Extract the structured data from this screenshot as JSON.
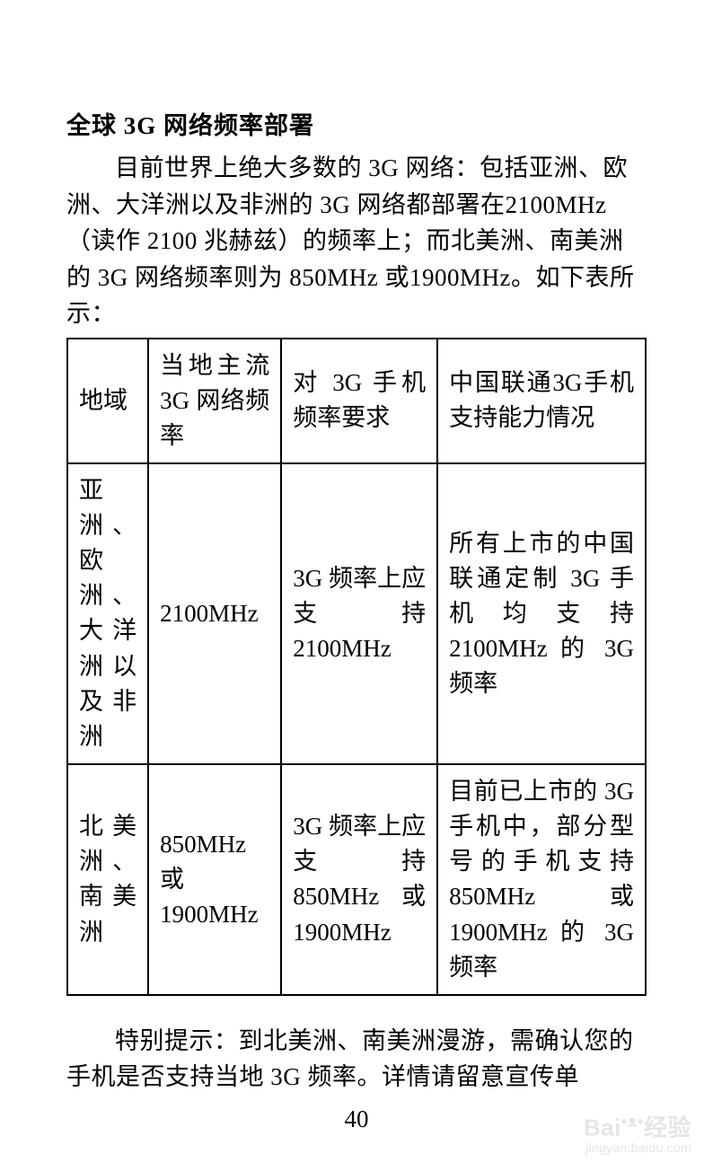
{
  "title": "全球 3G 网络频率部署",
  "intro": "目前世界上绝大多数的 3G 网络：包括亚洲、欧洲、大洋洲以及非洲的 3G 网络都部署在2100MHz（读作 2100 兆赫兹）的频率上；而北美洲、南美洲的 3G 网络频率则为 850MHz 或1900MHz。如下表所示：",
  "table": {
    "headers": [
      "地域",
      "当地主流 3G 网络频率",
      "对 3G 手机频率要求",
      "中国联通3G手机支持能力情况"
    ],
    "rows": [
      [
        "亚洲、欧洲、大洋洲以及非洲",
        "2100MHz",
        "3G 频率上应支持 2100MHz",
        "所有上市的中国联通定制 3G 手机均支持 2100MHz 的 3G 频率"
      ],
      [
        "北美洲、南美洲",
        "850MHz 或 1900MHz",
        "3G 频率上应支持 850MHz 或 1900MHz",
        "目前已上市的 3G 手机中，部分型号的手机支持 850MHz 或 1900MHz 的 3G 频率"
      ]
    ]
  },
  "note": "特别提示：到北美洲、南美洲漫游，需确认您的手机是否支持当地 3G 频率。详情请留意宣传单",
  "page_number": "40",
  "watermark": {
    "main": "Bai",
    "paw": "•ᴥ•",
    "brand": "经验",
    "sub": "jingyan.baidu.com"
  },
  "colors": {
    "text": "#000000",
    "background": "#ffffff",
    "border": "#000000",
    "watermark": "#d8d8d8"
  },
  "typography": {
    "title_fontsize": 27,
    "body_fontsize": 27,
    "font_family": "SimSun"
  }
}
